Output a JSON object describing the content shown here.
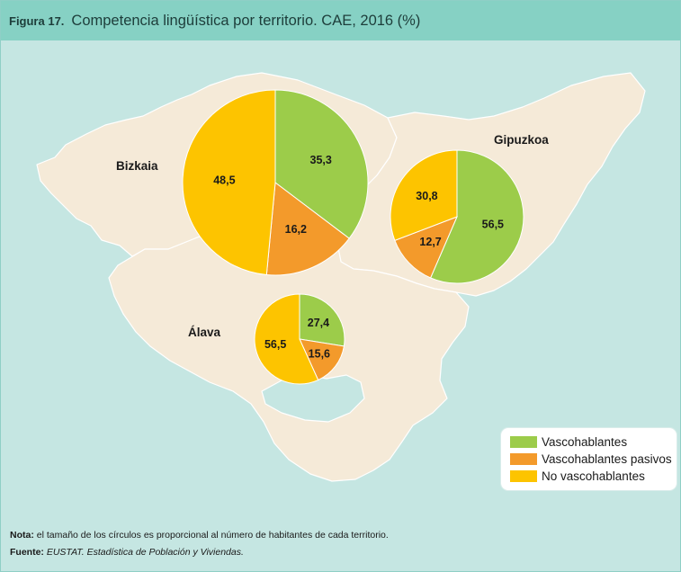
{
  "header": {
    "figure_label": "Figura 17.",
    "title": "Competencia lingüística por territorio. CAE, 2016 (%)"
  },
  "colors": {
    "vascohablantes": "#9ccc4a",
    "pasivos": "#f39a2b",
    "no_vascohablantes": "#fdc400",
    "land": "#f5ead8",
    "border": "#ffffff",
    "background": "#c5e6e2",
    "header": "#86d1c4"
  },
  "map": {
    "territories": [
      {
        "name": "Bizkaia"
      },
      {
        "name": "Gipuzkoa"
      },
      {
        "name": "Álava"
      }
    ]
  },
  "chart_data": {
    "type": "pie",
    "categories": [
      "Vascohablantes",
      "Vascohablantes pasivos",
      "No vascohablantes"
    ],
    "series": [
      {
        "name": "Bizkaia",
        "values": [
          35.3,
          16.2,
          48.5
        ]
      },
      {
        "name": "Gipuzkoa",
        "values": [
          56.5,
          12.7,
          30.8
        ]
      },
      {
        "name": "Álava",
        "values": [
          27.4,
          15.6,
          56.5
        ]
      }
    ],
    "value_labels": {
      "Bizkaia": [
        "35,3",
        "16,2",
        "48,5"
      ],
      "Gipuzkoa": [
        "56,5",
        "12,7",
        "30,8"
      ],
      "Álava": [
        "27,4",
        "15,6",
        "56,5"
      ]
    }
  },
  "legend": {
    "items": [
      {
        "label": "Vascohablantes",
        "color": "#9ccc4a"
      },
      {
        "label": "Vascohablantes pasivos",
        "color": "#f39a2b"
      },
      {
        "label": "No vascohablantes",
        "color": "#fdc400"
      }
    ]
  },
  "notes": {
    "nota_label": "Nota:",
    "nota_text": " el tamaño de los círculos es proporcional al número de habitantes de cada territorio.",
    "fuente_label": "Fuente:",
    "fuente_text": "EUSTAT. Estadística de Población y Viviendas."
  }
}
